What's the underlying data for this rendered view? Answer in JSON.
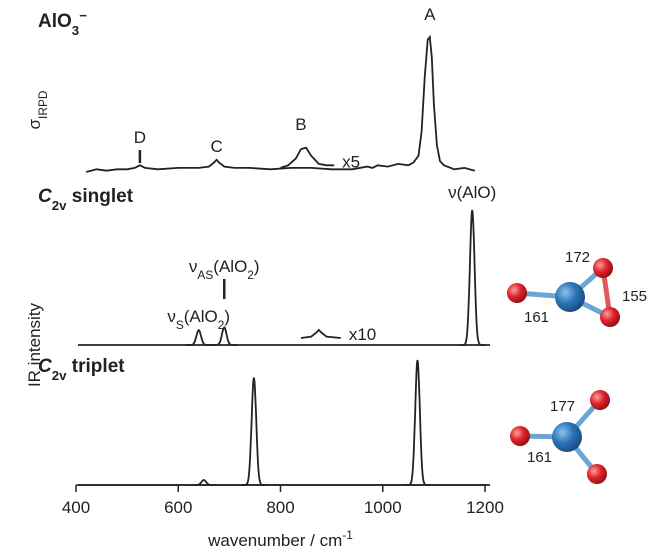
{
  "chart_data": [
    {
      "type": "line",
      "title_parts": [
        {
          "text": "AlO"
        },
        {
          "text": "3",
          "style": "sub"
        },
        {
          "text": "−",
          "style": "sup"
        }
      ],
      "ylabel_parts": [
        {
          "text": "σ"
        },
        {
          "text": "IRPD",
          "style": "sub"
        }
      ],
      "xlim": [
        400,
        1200
      ],
      "ylim": [
        0,
        1
      ],
      "x": [
        420,
        440,
        460,
        480,
        500,
        515,
        525,
        535,
        560,
        600,
        640,
        660,
        670,
        675,
        680,
        690,
        710,
        740,
        780,
        820,
        860,
        900,
        940,
        970,
        980,
        990,
        1010,
        1030,
        1050,
        1060,
        1070,
        1076,
        1082,
        1088,
        1092,
        1096,
        1100,
        1106,
        1112,
        1120,
        1140,
        1160,
        1180
      ],
      "values": [
        0.0,
        0.02,
        0.01,
        0.02,
        0.02,
        0.03,
        0.05,
        0.03,
        0.02,
        0.03,
        0.03,
        0.04,
        0.07,
        0.09,
        0.07,
        0.04,
        0.03,
        0.03,
        0.02,
        0.03,
        0.03,
        0.02,
        0.02,
        0.04,
        0.03,
        0.05,
        0.04,
        0.06,
        0.05,
        0.07,
        0.12,
        0.3,
        0.7,
        0.98,
        1.0,
        0.85,
        0.5,
        0.2,
        0.08,
        0.05,
        0.02,
        0.03,
        0.01
      ],
      "zoom": {
        "label": "x5",
        "x": [
          800,
          815,
          830,
          840,
          850,
          860,
          875,
          890,
          905
        ],
        "values": [
          0.03,
          0.05,
          0.1,
          0.17,
          0.18,
          0.12,
          0.06,
          0.05,
          0.05
        ]
      },
      "peak_labels": [
        {
          "parts": [
            {
              "text": "A"
            }
          ],
          "x": 1092
        },
        {
          "parts": [
            {
              "text": "B"
            }
          ],
          "x": 840
        },
        {
          "parts": [
            {
              "text": "C"
            }
          ],
          "x": 675
        },
        {
          "parts": [
            {
              "text": "D"
            }
          ],
          "x": 525
        }
      ]
    },
    {
      "type": "peaks",
      "title_parts": [
        {
          "text": "C",
          "style": "italic"
        },
        {
          "text": "2v",
          "style": "sub"
        },
        {
          "text": " singlet"
        }
      ],
      "ylabel_parts": [
        {
          "text": "IR intensity"
        }
      ],
      "xlim": [
        400,
        1200
      ],
      "ylim": [
        0,
        1
      ],
      "x": [
        640,
        690,
        1175
      ],
      "values": [
        0.11,
        0.13,
        1.0
      ],
      "zoom": {
        "label": "x10",
        "x": [
          840,
          860,
          870,
          875,
          880,
          890,
          918
        ],
        "values": [
          0.0,
          0.01,
          0.04,
          0.06,
          0.04,
          0.01,
          0.0
        ]
      },
      "peak_labels": [
        {
          "parts": [
            {
              "text": "ν"
            },
            {
              "text": "S",
              "style": "sub"
            },
            {
              "text": "(AlO"
            },
            {
              "text": "2",
              "style": "sub"
            },
            {
              "text": ")"
            }
          ],
          "x": 640
        },
        {
          "parts": [
            {
              "text": "ν"
            },
            {
              "text": "AS",
              "style": "sub"
            },
            {
              "text": "(AlO"
            },
            {
              "text": "2",
              "style": "sub"
            },
            {
              "text": ")"
            }
          ],
          "x": 690
        },
        {
          "parts": [
            {
              "text": "ν(AlO)"
            }
          ],
          "x": 1175
        }
      ],
      "structure_bonds": [
        "172",
        "155",
        "161"
      ]
    },
    {
      "type": "peaks",
      "title_parts": [
        {
          "text": "C",
          "style": "italic"
        },
        {
          "text": "2v",
          "style": "sub"
        },
        {
          "text": " triplet"
        }
      ],
      "xlim": [
        400,
        1200
      ],
      "ylim": [
        0,
        1
      ],
      "x": [
        650,
        748,
        1068
      ],
      "values": [
        0.04,
        0.86,
        1.0
      ],
      "xticks": [
        400,
        600,
        800,
        1000,
        1200
      ],
      "xlabel_parts": [
        {
          "text": "wavenumber / cm"
        },
        {
          "text": "-1",
          "style": "sup"
        }
      ],
      "structure_bonds": [
        "177",
        "161"
      ]
    }
  ]
}
